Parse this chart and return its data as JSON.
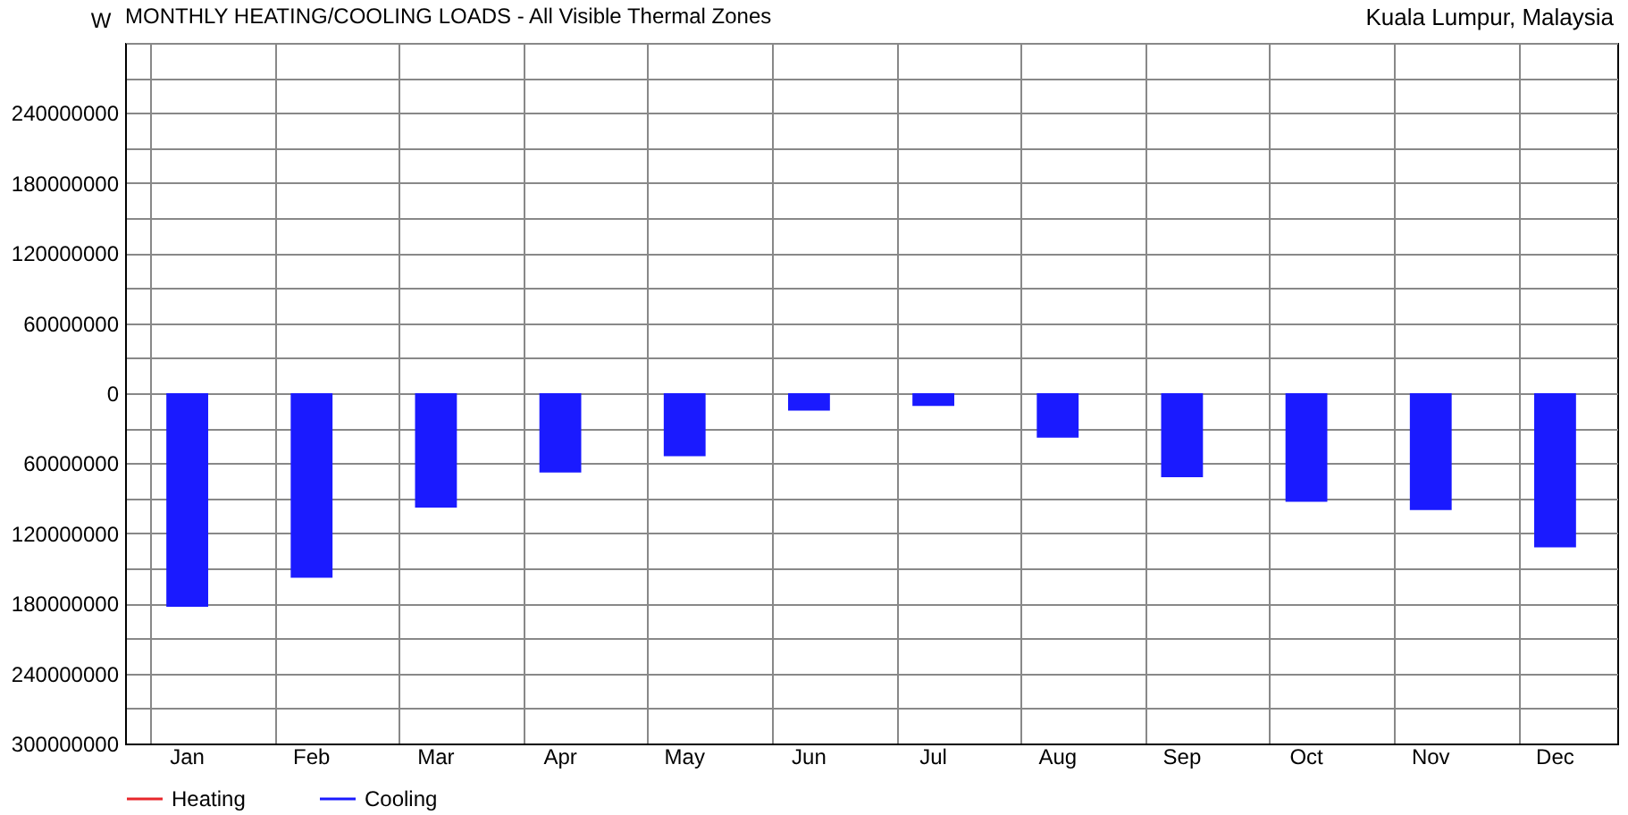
{
  "chart_data": {
    "type": "bar",
    "title": "MONTHLY HEATING/COOLING LOADS - All Visible Thermal Zones",
    "ylabel": "W",
    "annotations": [
      "Kuala Lumpur, Malaysia"
    ],
    "categories": [
      "Jan",
      "Feb",
      "Mar",
      "Apr",
      "May",
      "Jun",
      "Jul",
      "Aug",
      "Sep",
      "Oct",
      "Nov",
      "Dec"
    ],
    "series": [
      {
        "name": "Heating",
        "color": "#e8262b",
        "values": [
          0,
          0,
          0,
          0,
          0,
          0,
          0,
          0,
          0,
          0,
          0,
          0
        ]
      },
      {
        "name": "Cooling",
        "color": "#1a1aff",
        "values": [
          -183000000,
          -158000000,
          -98000000,
          -68000000,
          -54000000,
          -15000000,
          -11000000,
          -38000000,
          -72000000,
          -93000000,
          -100000000,
          -132000000
        ]
      }
    ],
    "ylim": [
      -300000000,
      300000000
    ],
    "yticks": [
      {
        "value": 300000000,
        "label": null
      },
      {
        "value": 270000000,
        "label": null
      },
      {
        "value": 240000000,
        "label": "240000000"
      },
      {
        "value": 210000000,
        "label": null
      },
      {
        "value": 180000000,
        "label": "180000000"
      },
      {
        "value": 150000000,
        "label": null
      },
      {
        "value": 120000000,
        "label": "120000000"
      },
      {
        "value": 90000000,
        "label": null
      },
      {
        "value": 60000000,
        "label": "60000000"
      },
      {
        "value": 30000000,
        "label": null
      },
      {
        "value": 0,
        "label": "0"
      },
      {
        "value": -30000000,
        "label": null
      },
      {
        "value": -60000000,
        "label": "60000000"
      },
      {
        "value": -90000000,
        "label": null
      },
      {
        "value": -120000000,
        "label": "120000000"
      },
      {
        "value": -150000000,
        "label": null
      },
      {
        "value": -180000000,
        "label": "180000000"
      },
      {
        "value": -210000000,
        "label": null
      },
      {
        "value": -240000000,
        "label": "240000000"
      },
      {
        "value": -270000000,
        "label": null
      },
      {
        "value": -300000000,
        "label": "300000000"
      }
    ],
    "grid": true,
    "legend": "bottom left"
  }
}
